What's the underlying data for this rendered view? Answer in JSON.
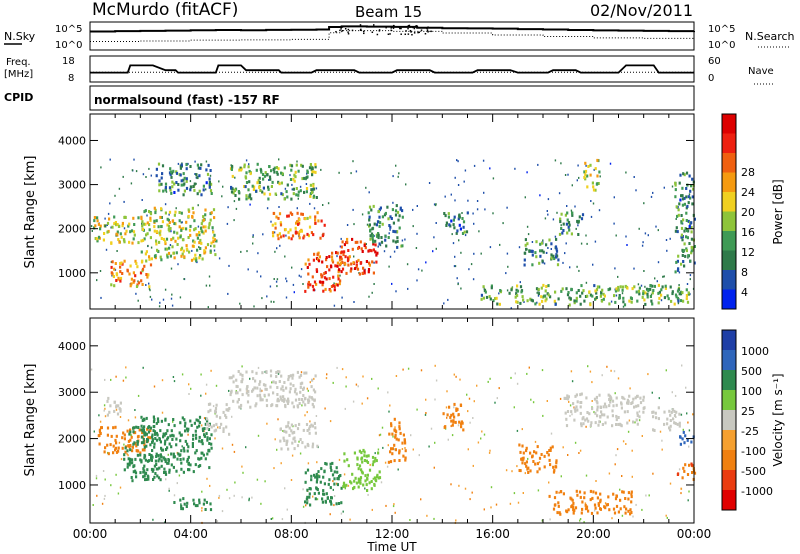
{
  "header": {
    "title": "McMurdo (fitACF)",
    "beam": "Beam 15",
    "date": "02/Nov/2011"
  },
  "noise_panel": {
    "left_label": "N.Sky",
    "right_label": "N.Search",
    "left_ticks": [
      "10^5",
      "10^0"
    ],
    "right_ticks": [
      "10^5",
      "10^0"
    ]
  },
  "freq_panel": {
    "left_label_1": "Freq.",
    "left_label_2": "[MHz]",
    "right_label": "Nave",
    "left_ticks": [
      "18",
      "8"
    ],
    "right_ticks": [
      "60",
      "0"
    ]
  },
  "cpid_panel": {
    "label": "CPID",
    "text": "normalsound (fast) -157 RF"
  },
  "power_panel": {
    "ylabel": "Slant Range [km]",
    "colorbar_label": "Power [dB]",
    "colorbar_ticks": [
      "28",
      "24",
      "20",
      "16",
      "12",
      "8",
      "4"
    ]
  },
  "velocity_panel": {
    "ylabel": "Slant Range [km]",
    "colorbar_label": "Velocity [m s⁻¹]",
    "colorbar_ticks": [
      "1000",
      "500",
      "100",
      "25",
      "-25",
      "-100",
      "-500",
      "-1000"
    ]
  },
  "colors": {
    "power_scale": [
      "#0022ee",
      "#1f4faa",
      "#2f7a4a",
      "#3f9a55",
      "#8ec43a",
      "#f0d020",
      "#f59a10",
      "#f06010",
      "#ee2010",
      "#dd0000"
    ],
    "velocity_scale": [
      "#1f3fa6",
      "#2f66bb",
      "#2f8a4f",
      "#77c83d",
      "#c8c8c0",
      "#f5a030",
      "#f08010",
      "#ea3c10",
      "#e00000"
    ]
  },
  "chart_data": [
    {
      "type": "line",
      "name": "noise",
      "xlim": [
        0,
        24
      ],
      "x_ticks": [
        "00:00",
        "04:00",
        "08:00",
        "12:00",
        "16:00",
        "20:00",
        "00:00"
      ],
      "series": [
        {
          "name": "N.Sky",
          "x": [
            0,
            1,
            2,
            3,
            4,
            5,
            6,
            7,
            8,
            9,
            9.5,
            10,
            11,
            12,
            13,
            14,
            15,
            16,
            17,
            18,
            19,
            20,
            21,
            22,
            23,
            24
          ],
          "values": [
            5500,
            7000,
            8000,
            9000,
            11000,
            12000,
            11000,
            13000,
            14000,
            16000,
            60000,
            80000,
            70000,
            65000,
            40000,
            30000,
            28000,
            25000,
            20000,
            16000,
            12000,
            10000,
            9000,
            8000,
            7000,
            7500
          ]
        },
        {
          "name": "N.Search",
          "x": [
            0,
            2,
            4,
            6,
            8,
            9.5,
            10,
            12,
            14,
            16,
            18,
            20,
            22,
            24
          ],
          "values": [
            30,
            40,
            60,
            70,
            90,
            3000,
            9000,
            6000,
            2500,
            900,
            400,
            200,
            150,
            100
          ]
        }
      ]
    },
    {
      "type": "line",
      "name": "frequency",
      "xlim": [
        0,
        24
      ],
      "x": [
        0,
        1.5,
        1.6,
        2.5,
        3.0,
        3.4,
        3.5,
        5.0,
        5.1,
        6.0,
        6.2,
        7.5,
        7.6,
        8.8,
        9.0,
        10.5,
        10.7,
        12.0,
        12.2,
        13.5,
        13.7,
        15.2,
        15.4,
        16.7,
        17.0,
        18.2,
        18.4,
        19.3,
        19.5,
        21.0,
        21.3,
        22.4,
        22.6,
        24
      ],
      "freq_mhz": [
        11.5,
        11.5,
        14.5,
        14.5,
        12.5,
        12.5,
        11.5,
        11.5,
        14.5,
        14.5,
        12.5,
        12.5,
        11.5,
        11.5,
        12.5,
        12.5,
        11.5,
        11.5,
        12.5,
        12.5,
        11.5,
        11.5,
        12.5,
        12.5,
        11.5,
        11.5,
        12.5,
        12.5,
        11.5,
        11.5,
        14.5,
        14.5,
        11.5,
        11.5
      ],
      "nave": 22,
      "ylim_freq": [
        8,
        18
      ],
      "ylim_nave": [
        0,
        60
      ]
    },
    {
      "type": "heatmap",
      "name": "power",
      "xlabel": "Time UT",
      "ylabel": "Slant Range [km]",
      "xlim": [
        0,
        24
      ],
      "ylim": [
        180,
        4600
      ],
      "y_ticks": [
        1000,
        2000,
        3000,
        4000
      ],
      "colorbar_range": [
        0,
        32
      ],
      "patches": [
        {
          "t0": 0.1,
          "t1": 2.1,
          "r0": 1700,
          "r1": 2300,
          "db": 15
        },
        {
          "t0": 0.8,
          "t1": 2.4,
          "r0": 700,
          "r1": 1300,
          "db": 20
        },
        {
          "t0": 2.0,
          "t1": 5.0,
          "r0": 1300,
          "r1": 2500,
          "db": 16
        },
        {
          "t0": 2.6,
          "t1": 4.8,
          "r0": 2800,
          "r1": 3500,
          "db": 9
        },
        {
          "t0": 5.5,
          "t1": 9.0,
          "r0": 2700,
          "r1": 3500,
          "db": 12
        },
        {
          "t0": 7.2,
          "t1": 9.3,
          "r0": 1800,
          "r1": 2400,
          "db": 21
        },
        {
          "t0": 8.5,
          "t1": 10.0,
          "r0": 600,
          "r1": 1500,
          "db": 26
        },
        {
          "t0": 9.8,
          "t1": 11.5,
          "r0": 1000,
          "r1": 1800,
          "db": 27
        },
        {
          "t0": 11.0,
          "t1": 12.4,
          "r0": 1600,
          "r1": 2600,
          "db": 10
        },
        {
          "t0": 14.0,
          "t1": 15.0,
          "r0": 1900,
          "r1": 2400,
          "db": 8
        },
        {
          "t0": 17.2,
          "t1": 18.6,
          "r0": 1200,
          "r1": 1800,
          "db": 9
        },
        {
          "t0": 15.5,
          "t1": 23.8,
          "r0": 300,
          "r1": 750,
          "db": 12
        },
        {
          "t0": 18.6,
          "t1": 19.6,
          "r0": 1900,
          "r1": 2400,
          "db": 10
        },
        {
          "t0": 19.6,
          "t1": 20.2,
          "r0": 2900,
          "r1": 3600,
          "db": 16
        },
        {
          "t0": 23.2,
          "t1": 24.0,
          "r0": 1000,
          "r1": 3300,
          "db": 9
        }
      ]
    },
    {
      "type": "heatmap",
      "name": "velocity",
      "xlabel": "Time UT",
      "ylabel": "Slant Range [km]",
      "xlim": [
        0,
        24
      ],
      "ylim": [
        180,
        4600
      ],
      "y_ticks": [
        1000,
        2000,
        3000,
        4000
      ],
      "colorbar_range": [
        -1000,
        1000
      ],
      "patches": [
        {
          "t0": 0.3,
          "t1": 2.4,
          "r0": 1700,
          "r1": 2300,
          "v": -150
        },
        {
          "t0": 0.6,
          "t1": 1.3,
          "r0": 2500,
          "r1": 2900,
          "v": 10
        },
        {
          "t0": 1.3,
          "t1": 3.0,
          "r0": 1100,
          "r1": 2300,
          "v": 150
        },
        {
          "t0": 2.0,
          "t1": 4.8,
          "r0": 1300,
          "r1": 2500,
          "v": 180
        },
        {
          "t0": 3.3,
          "t1": 4.8,
          "r0": 500,
          "r1": 750,
          "v": 300
        },
        {
          "t0": 4.6,
          "t1": 5.5,
          "r0": 2100,
          "r1": 2800,
          "v": 15
        },
        {
          "t0": 5.5,
          "t1": 9.0,
          "r0": 2700,
          "r1": 3500,
          "v": 10
        },
        {
          "t0": 7.5,
          "t1": 9.0,
          "r0": 1800,
          "r1": 2400,
          "v": 10
        },
        {
          "t0": 8.5,
          "t1": 10.0,
          "r0": 600,
          "r1": 1500,
          "v": 200
        },
        {
          "t0": 10.0,
          "t1": 11.5,
          "r0": 900,
          "r1": 1800,
          "v": 60
        },
        {
          "t0": 11.8,
          "t1": 12.5,
          "r0": 1500,
          "r1": 2500,
          "v": -150
        },
        {
          "t0": 14.0,
          "t1": 14.8,
          "r0": 2200,
          "r1": 2800,
          "v": -200
        },
        {
          "t0": 17.0,
          "t1": 18.5,
          "r0": 1300,
          "r1": 1900,
          "v": -250
        },
        {
          "t0": 18.2,
          "t1": 21.5,
          "r0": 400,
          "r1": 900,
          "v": -300
        },
        {
          "t0": 18.8,
          "t1": 22.0,
          "r0": 2300,
          "r1": 3000,
          "v": 10
        },
        {
          "t0": 22.3,
          "t1": 23.4,
          "r0": 2200,
          "r1": 2700,
          "v": 10
        },
        {
          "t0": 23.3,
          "t1": 24.0,
          "r0": 1100,
          "r1": 1500,
          "v": -400
        },
        {
          "t0": 23.4,
          "t1": 24.0,
          "r0": 1900,
          "r1": 2200,
          "v": 700
        }
      ]
    }
  ]
}
